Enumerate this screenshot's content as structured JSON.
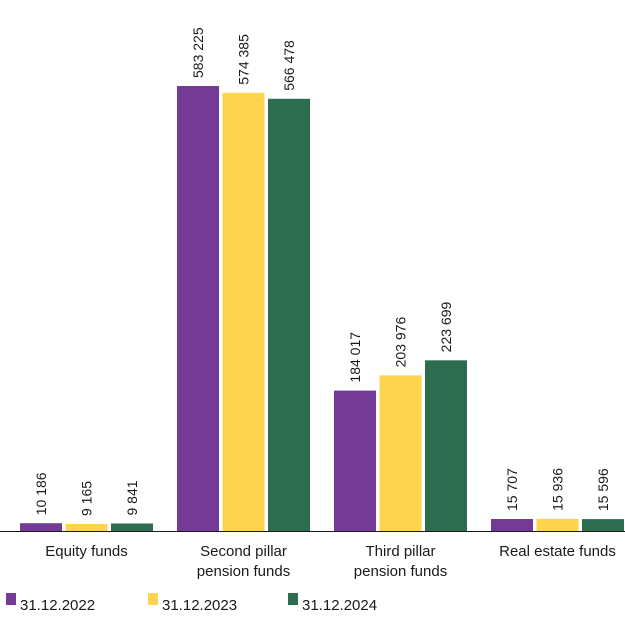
{
  "chart_data": {
    "type": "bar",
    "categories": [
      [
        "Equity funds"
      ],
      [
        "Second pillar",
        "pension funds"
      ],
      [
        "Third pillar",
        "pension funds"
      ],
      [
        "Real estate funds"
      ]
    ],
    "series": [
      {
        "name": "31.12.2022",
        "color": "#733a96",
        "values": [
          10186,
          583225,
          184017,
          15707
        ],
        "labels": [
          "10 186",
          "583 225",
          "184 017",
          "15 707"
        ]
      },
      {
        "name": "31.12.2023",
        "color": "#fed34d",
        "values": [
          9165,
          574385,
          203976,
          15936
        ],
        "labels": [
          "9 165",
          "574 385",
          "203 976",
          "15 936"
        ]
      },
      {
        "name": "31.12.2024",
        "color": "#2e6c4f",
        "values": [
          9841,
          566478,
          223699,
          15596
        ],
        "labels": [
          "9 841",
          "566 478",
          "223 699",
          "15 596"
        ]
      }
    ],
    "ylim": [
      0,
      583225
    ],
    "legend": "bottom-left",
    "grid": false
  }
}
